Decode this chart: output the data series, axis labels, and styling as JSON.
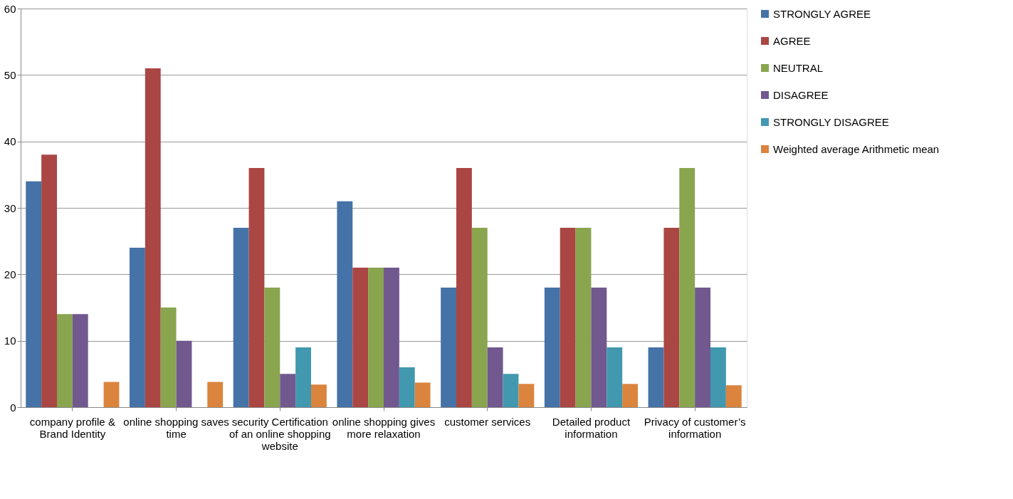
{
  "chart_data": {
    "type": "bar",
    "categories": [
      "company profile & Brand Identity",
      "online shopping saves time",
      "security Certification of an online shopping website",
      "online shopping gives more relaxation",
      "customer services",
      "Detailed product information",
      "Privacy of customer’s information"
    ],
    "series": [
      {
        "name": "STRONGLY AGREE",
        "color": "#4572a7",
        "values": [
          34,
          24,
          27,
          31,
          18,
          18,
          9
        ]
      },
      {
        "name": "AGREE",
        "color": "#aa4643",
        "values": [
          38,
          51,
          36,
          21,
          36,
          27,
          27
        ]
      },
      {
        "name": "NEUTRAL",
        "color": "#89a54e",
        "values": [
          14,
          15,
          18,
          21,
          27,
          27,
          36
        ]
      },
      {
        "name": "DISAGREE",
        "color": "#71588f",
        "values": [
          14,
          10,
          5,
          21,
          9,
          18,
          18
        ]
      },
      {
        "name": "STRONGLY DISAGREE",
        "color": "#4198af",
        "values": [
          0,
          0,
          9,
          6,
          5,
          9,
          9
        ]
      },
      {
        "name": "Weighted average Arithmetic mean",
        "color": "#db843d",
        "values": [
          3.8,
          3.8,
          3.4,
          3.7,
          3.5,
          3.5,
          3.3
        ]
      }
    ],
    "ylim": [
      0,
      60
    ],
    "yticks": [
      0,
      10,
      20,
      30,
      40,
      50,
      60
    ],
    "grid": "y",
    "legend": "right"
  }
}
